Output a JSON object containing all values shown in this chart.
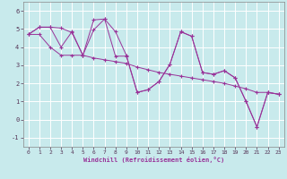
{
  "xlabel": "Windchill (Refroidissement éolien,°C)",
  "background_color": "#c8eaec",
  "grid_color": "#b0d8dc",
  "line_color": "#993399",
  "xlim": [
    -0.5,
    23.5
  ],
  "ylim": [
    -1.5,
    6.5
  ],
  "xticks": [
    0,
    1,
    2,
    3,
    4,
    5,
    6,
    7,
    8,
    9,
    10,
    11,
    12,
    13,
    14,
    15,
    16,
    17,
    18,
    19,
    20,
    21,
    22,
    23
  ],
  "yticks": [
    -1,
    0,
    1,
    2,
    3,
    4,
    5,
    6
  ],
  "series": [
    [
      4.7,
      5.1,
      5.1,
      5.05,
      4.8,
      3.55,
      5.5,
      5.55,
      3.5,
      3.5,
      1.5,
      1.65,
      2.1,
      3.05,
      4.85,
      4.6,
      2.6,
      2.5,
      2.7,
      2.3,
      1.0,
      -0.4,
      1.5,
      1.4
    ],
    [
      4.7,
      5.1,
      5.1,
      4.0,
      4.85,
      3.55,
      4.95,
      5.55,
      4.85,
      3.55,
      1.5,
      1.65,
      2.1,
      3.05,
      4.85,
      4.6,
      2.6,
      2.5,
      2.7,
      2.3,
      1.0,
      -0.4,
      1.5,
      1.4
    ],
    [
      4.7,
      4.7,
      4.0,
      3.55,
      3.55,
      3.55,
      3.4,
      3.3,
      3.2,
      3.1,
      2.9,
      2.75,
      2.6,
      2.5,
      2.4,
      2.3,
      2.2,
      2.1,
      2.0,
      1.85,
      1.7,
      1.5,
      1.5,
      1.4
    ]
  ]
}
